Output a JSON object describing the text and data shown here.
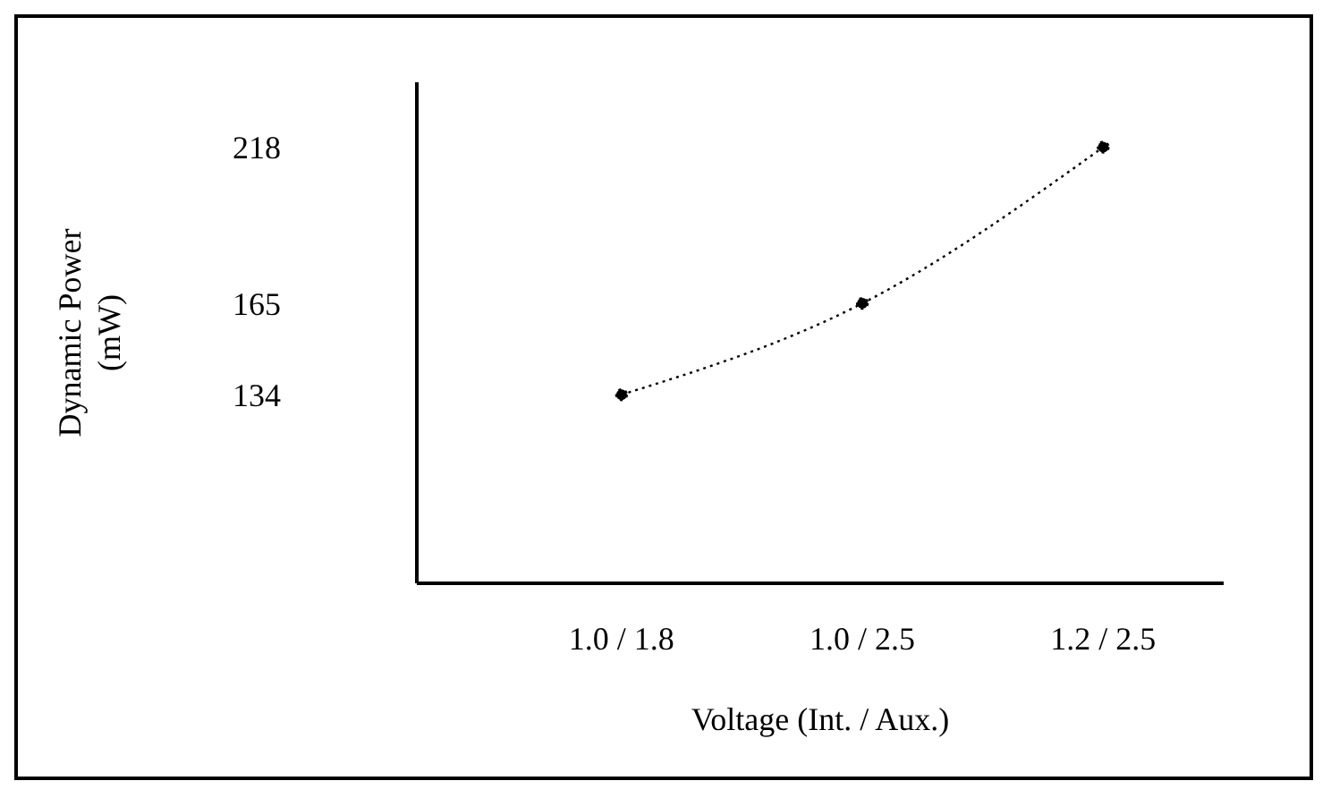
{
  "chart_data": {
    "type": "line",
    "xlabel": "Voltage (Int. / Aux.)",
    "ylabel": "Dynamic Power\n(mW)",
    "categories": [
      "1.0 / 1.8",
      "1.0 / 2.5",
      "1.2 / 2.5"
    ],
    "series": [
      {
        "color": "#000000",
        "values": [
          134,
          165,
          218
        ]
      }
    ],
    "ylim": [
      70,
      240
    ],
    "yticks": [
      134,
      165,
      218
    ],
    "grid": false,
    "legend": false,
    "marker": "circle",
    "line_style": "dotted"
  }
}
